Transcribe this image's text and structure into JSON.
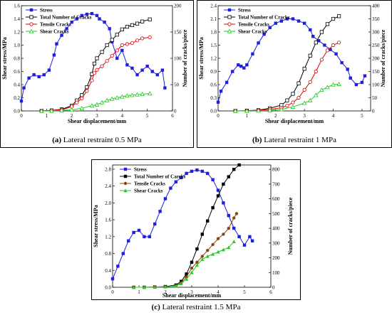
{
  "chart_data": [
    {
      "type": "line",
      "panel": "a",
      "caption_label": "(a)",
      "caption_text": "Lateral restraint 0.5 MPa",
      "xlabel": "Shear displacement/mm",
      "ylabel": "Shear stress/MPa",
      "y2label": "Number of cracks/piece",
      "xlim": [
        0,
        6
      ],
      "ylim": [
        0,
        1.6
      ],
      "y2lim": [
        0,
        200
      ],
      "xticks": [
        0,
        1,
        2,
        3,
        4,
        5,
        6
      ],
      "yticks": [
        0.0,
        0.2,
        0.4,
        0.6,
        0.8,
        1.0,
        1.2,
        1.4,
        1.6
      ],
      "y2ticks": [
        0,
        50,
        100,
        150,
        200
      ],
      "ytick_labels": [
        "0.0",
        "0.2",
        "0.4",
        "0.6",
        "0.8",
        "1.0",
        "1.2",
        "1.4",
        "1.6"
      ],
      "legend_position": "top-left",
      "series": [
        {
          "name": "Stress",
          "axis": "left",
          "color": "#1f1fe0",
          "marker": "square-filled",
          "x": [
            0,
            0.1,
            0.3,
            0.5,
            0.7,
            0.9,
            1.1,
            1.3,
            1.4,
            1.6,
            1.8,
            2.0,
            2.2,
            2.4,
            2.6,
            2.8,
            3.0,
            3.1,
            3.3,
            3.5,
            3.6,
            3.8,
            4.0,
            4.2,
            4.4,
            4.6,
            4.8,
            5.0,
            5.2,
            5.4,
            5.6,
            5.7
          ],
          "y": [
            0.15,
            0.35,
            0.5,
            0.55,
            0.52,
            0.55,
            0.62,
            0.85,
            1.02,
            1.15,
            1.25,
            1.35,
            1.4,
            1.45,
            1.47,
            1.48,
            1.45,
            1.4,
            1.35,
            1.25,
            1.05,
            0.8,
            0.92,
            0.7,
            0.65,
            0.55,
            0.62,
            0.68,
            0.6,
            0.55,
            0.62,
            0.35
          ]
        },
        {
          "name": "Total Number of Cracks",
          "axis": "right",
          "color": "#000000",
          "marker": "square-open",
          "x": [
            0.8,
            1.2,
            1.6,
            2.0,
            2.2,
            2.4,
            2.6,
            2.8,
            2.9,
            3.0,
            3.2,
            3.4,
            3.6,
            3.8,
            4.0,
            4.2,
            4.4,
            4.6,
            4.8,
            5.1
          ],
          "y": [
            0,
            1,
            3,
            10,
            20,
            30,
            45,
            70,
            90,
            100,
            112,
            125,
            135,
            145,
            155,
            160,
            163,
            166,
            170,
            174
          ]
        },
        {
          "name": "Tensile Cracks",
          "axis": "right",
          "color": "#e00000",
          "marker": "circle-open",
          "x": [
            0.8,
            1.2,
            1.6,
            2.0,
            2.2,
            2.4,
            2.6,
            2.8,
            2.9,
            3.0,
            3.2,
            3.4,
            3.6,
            3.8,
            4.0,
            4.2,
            4.4,
            4.6,
            4.8,
            5.1
          ],
          "y": [
            0,
            1,
            2,
            8,
            16,
            24,
            38,
            58,
            72,
            78,
            85,
            95,
            105,
            115,
            125,
            127,
            129,
            134,
            138,
            140
          ]
        },
        {
          "name": "Shear Cracks",
          "axis": "right",
          "color": "#22cc22",
          "marker": "triangle-open",
          "x": [
            0.8,
            1.2,
            1.6,
            2.0,
            2.4,
            2.8,
            3.0,
            3.2,
            3.4,
            3.6,
            3.8,
            4.0,
            4.2,
            4.4,
            4.6,
            4.8,
            5.1
          ],
          "y": [
            0,
            0,
            1,
            2,
            5,
            10,
            12,
            16,
            20,
            23,
            25,
            27,
            29,
            30,
            31,
            32,
            33
          ]
        }
      ]
    },
    {
      "type": "line",
      "panel": "b",
      "caption_label": "(b)",
      "caption_text": "Lateral restraint 1 MPa",
      "xlabel": "Shear displacement/mm",
      "ylabel": "Shear stress/MPa",
      "y2label": "Number of cracks/piece",
      "xlim": [
        0,
        5.3
      ],
      "ylim": [
        0,
        2.4
      ],
      "y2lim": [
        0,
        400
      ],
      "xticks": [
        0,
        1,
        2,
        3,
        4,
        5
      ],
      "yticks": [
        0.0,
        0.3,
        0.6,
        0.9,
        1.2,
        1.5,
        1.8,
        2.1,
        2.4
      ],
      "y2ticks": [
        0,
        50,
        100,
        150,
        200,
        250,
        300,
        350,
        400
      ],
      "ytick_labels": [
        "0.0",
        "0.3",
        "0.6",
        "0.9",
        "1.2",
        "1.5",
        "1.8",
        "2.1",
        "2.4"
      ],
      "legend_position": "top-left",
      "series": [
        {
          "name": "Stress",
          "axis": "left",
          "color": "#1f1fe0",
          "marker": "square-filled",
          "x": [
            0,
            0.1,
            0.3,
            0.5,
            0.7,
            0.8,
            0.9,
            1.0,
            1.2,
            1.4,
            1.6,
            1.8,
            2.0,
            2.2,
            2.4,
            2.6,
            2.8,
            3.0,
            3.2,
            3.3,
            3.5,
            3.7,
            3.9,
            4.1,
            4.3,
            4.5,
            4.6,
            4.8,
            5.0,
            5.1
          ],
          "y": [
            0.2,
            0.45,
            0.65,
            0.9,
            1.05,
            1.02,
            0.98,
            1.05,
            1.3,
            1.55,
            1.75,
            1.9,
            2.0,
            2.05,
            2.1,
            2.1,
            2.05,
            2.0,
            1.85,
            1.7,
            1.6,
            1.5,
            1.4,
            1.3,
            1.1,
            0.95,
            0.75,
            0.6,
            0.65,
            0.8
          ]
        },
        {
          "name": "Total Number of Cracks",
          "axis": "right",
          "color": "#000000",
          "marker": "square-open",
          "x": [
            0.6,
            1.0,
            1.4,
            1.8,
            2.2,
            2.4,
            2.6,
            2.8,
            3.0,
            3.2,
            3.4,
            3.6,
            3.8,
            4.0,
            4.2
          ],
          "y": [
            0,
            1,
            3,
            10,
            22,
            40,
            65,
            105,
            160,
            210,
            260,
            300,
            330,
            350,
            360
          ]
        },
        {
          "name": "Tensile Cracks",
          "axis": "right",
          "color": "#e00000",
          "marker": "circle-open",
          "x": [
            0.6,
            1.0,
            1.4,
            1.8,
            2.2,
            2.4,
            2.6,
            2.8,
            3.0,
            3.2,
            3.4,
            3.6,
            3.8,
            4.0,
            4.2
          ],
          "y": [
            0,
            0,
            2,
            6,
            12,
            20,
            32,
            50,
            80,
            110,
            150,
            195,
            230,
            250,
            260
          ]
        },
        {
          "name": "Shear Cracks",
          "axis": "right",
          "color": "#22cc22",
          "marker": "triangle-open",
          "x": [
            0.6,
            1.0,
            1.4,
            1.8,
            2.2,
            2.6,
            3.0,
            3.2,
            3.4,
            3.6,
            3.8,
            4.0,
            4.2
          ],
          "y": [
            0,
            0,
            1,
            2,
            6,
            15,
            30,
            40,
            60,
            80,
            90,
            100,
            102
          ]
        }
      ]
    },
    {
      "type": "line",
      "panel": "c",
      "caption_label": "(c)",
      "caption_text": "Lateral restraint 1.5 MPa",
      "xlabel": "Shear displacement/mm",
      "ylabel": "Shear stress/MPa",
      "y2label": "Number of cracks/piece",
      "xlim": [
        0,
        6
      ],
      "ylim": [
        0,
        2.9
      ],
      "y2lim": [
        0,
        830
      ],
      "xticks": [
        0,
        1,
        2,
        3,
        4,
        5,
        6
      ],
      "yticks": [
        0.0,
        0.4,
        0.8,
        1.2,
        1.6,
        2.0,
        2.4,
        2.8
      ],
      "y2ticks": [
        0,
        100,
        200,
        300,
        400,
        500,
        600,
        700,
        800
      ],
      "ytick_labels": [
        "0.0",
        "0.4",
        "0.8",
        "1.2",
        "1.6",
        "2.0",
        "2.4",
        "2.8"
      ],
      "legend_position": "top-left",
      "series": [
        {
          "name": "Stress",
          "axis": "left",
          "color": "#1f1fe0",
          "marker": "square-filled",
          "x": [
            0,
            0.2,
            0.4,
            0.6,
            0.8,
            1.0,
            1.2,
            1.4,
            1.6,
            1.8,
            2.0,
            2.2,
            2.4,
            2.6,
            2.8,
            3.0,
            3.2,
            3.4,
            3.6,
            3.8,
            4.0,
            4.2,
            4.4,
            4.6,
            4.8,
            5.0,
            5.2,
            5.3
          ],
          "y": [
            0.2,
            0.5,
            0.8,
            1.1,
            1.3,
            1.35,
            1.2,
            1.2,
            1.5,
            1.8,
            2.1,
            2.35,
            2.5,
            2.6,
            2.7,
            2.75,
            2.78,
            2.75,
            2.7,
            2.55,
            2.3,
            2.0,
            1.7,
            1.4,
            1.2,
            1.0,
            1.2,
            1.1
          ]
        },
        {
          "name": "Total Number of Carcks",
          "axis": "right",
          "color": "#000000",
          "marker": "square-filled",
          "x": [
            0.8,
            1.2,
            1.6,
            2.0,
            2.4,
            2.6,
            2.8,
            3.0,
            3.2,
            3.4,
            3.6,
            3.8,
            4.0,
            4.2,
            4.4,
            4.6,
            4.8
          ],
          "y": [
            0,
            0,
            2,
            5,
            15,
            40,
            90,
            170,
            260,
            360,
            450,
            540,
            620,
            700,
            750,
            800,
            830
          ]
        },
        {
          "name": "Tensile Cracks",
          "axis": "right",
          "color": "#8b4513",
          "marker": "circle-filled",
          "x": [
            0.8,
            1.2,
            1.6,
            2.0,
            2.4,
            2.6,
            2.8,
            3.0,
            3.2,
            3.4,
            3.6,
            3.8,
            4.0,
            4.2,
            4.4,
            4.6,
            4.7
          ],
          "y": [
            0,
            0,
            1,
            3,
            10,
            30,
            70,
            130,
            170,
            210,
            250,
            290,
            330,
            360,
            400,
            470,
            500
          ]
        },
        {
          "name": "Shear Cracks",
          "axis": "right",
          "color": "#22cc22",
          "marker": "triangle-filled",
          "x": [
            0.8,
            1.2,
            1.6,
            2.0,
            2.4,
            2.6,
            2.8,
            3.0,
            3.2,
            3.4,
            3.6,
            3.8,
            4.0,
            4.2,
            4.4,
            4.6
          ],
          "y": [
            0,
            0,
            1,
            3,
            10,
            25,
            55,
            100,
            150,
            190,
            210,
            225,
            240,
            255,
            270,
            310
          ]
        }
      ]
    }
  ]
}
